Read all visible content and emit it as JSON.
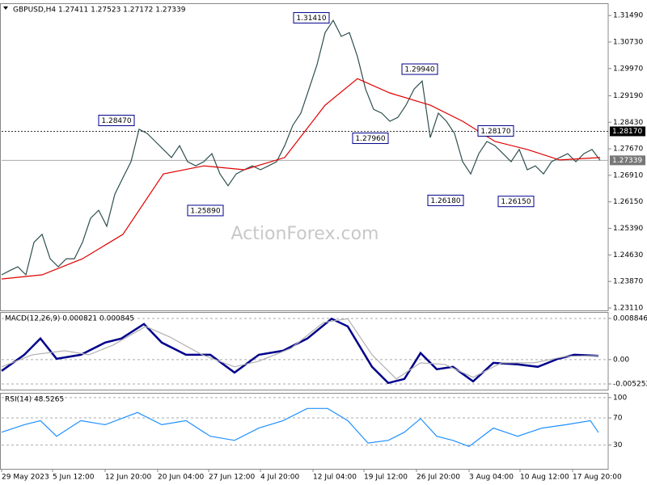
{
  "chart_data": [
    {
      "type": "line",
      "title": "GBPUSD,H4  1.27411 1.27523 1.27172 1.27339",
      "watermark": "ActionForex.com",
      "xlim": [
        0,
        75
      ],
      "ylim": [
        1.2304,
        1.3184
      ],
      "yticks": [
        {
          "value": 1.3149,
          "label": "1.31490"
        },
        {
          "value": 1.3073,
          "label": "1.30730"
        },
        {
          "value": 1.2997,
          "label": "1.29970"
        },
        {
          "value": 1.2919,
          "label": "1.29190"
        },
        {
          "value": 1.2843,
          "label": "1.28430"
        },
        {
          "value": 1.2767,
          "label": "1.27670"
        },
        {
          "value": 1.2691,
          "label": "1.26910"
        },
        {
          "value": 1.2615,
          "label": "1.26150"
        },
        {
          "value": 1.2539,
          "label": "1.25390"
        },
        {
          "value": 1.2463,
          "label": "1.24630"
        },
        {
          "value": 1.2387,
          "label": "1.23870"
        },
        {
          "value": 1.2311,
          "label": "1.23110"
        }
      ],
      "reference_lines": [
        {
          "value": 1.2817,
          "label": "1.28170",
          "style": "dashed"
        },
        {
          "value": 1.27339,
          "label": "1.27339",
          "style": "solid"
        }
      ],
      "annotations": [
        {
          "value": 1.3141,
          "label": "1.31410"
        },
        {
          "value": 1.2994,
          "label": "1.29940"
        },
        {
          "value": 1.2847,
          "label": "1.28470"
        },
        {
          "value": 1.2796,
          "label": "1.27960"
        },
        {
          "value": 1.2817,
          "label": "1.28170"
        },
        {
          "value": 1.2589,
          "label": "1.25890"
        },
        {
          "value": 1.2618,
          "label": "1.26180"
        },
        {
          "value": 1.2615,
          "label": "1.26150"
        }
      ],
      "series": [
        {
          "color": "#2f4f4f",
          "x": [
            0,
            1,
            2,
            3,
            4,
            5,
            6,
            7,
            8,
            9,
            10,
            11,
            12,
            13,
            14,
            15,
            16,
            17,
            18,
            19,
            20,
            21,
            22,
            23,
            24,
            25,
            26,
            27,
            28,
            29,
            30,
            31,
            32,
            33,
            34,
            35,
            36,
            37,
            38,
            39,
            40,
            41,
            42,
            43,
            44,
            45,
            46,
            47,
            48,
            49,
            50,
            51,
            52,
            53,
            54,
            55,
            56,
            57,
            58,
            59,
            60,
            61,
            62,
            63,
            64,
            65,
            66,
            67,
            68,
            69,
            70,
            71,
            72,
            73,
            74
          ],
          "values": [
            1.2406,
            1.2418,
            1.2429,
            1.2406,
            1.2499,
            1.2522,
            1.2452,
            1.2429,
            1.2452,
            1.2452,
            1.2499,
            1.2568,
            1.2591,
            1.2545,
            1.2637,
            1.2684,
            1.273,
            1.2823,
            1.2811,
            1.2788,
            1.2765,
            1.2742,
            1.2776,
            1.273,
            1.2718,
            1.273,
            1.2753,
            1.2695,
            1.2661,
            1.2695,
            1.2707,
            1.2718,
            1.2707,
            1.2718,
            1.273,
            1.2776,
            1.2834,
            1.2869,
            1.2938,
            1.3008,
            1.31,
            1.3135,
            1.3089,
            1.31,
            1.3031,
            1.2938,
            1.288,
            1.2869,
            1.2846,
            1.2857,
            1.2892,
            1.2938,
            1.2961,
            1.2799,
            1.2869,
            1.2846,
            1.2811,
            1.273,
            1.2695,
            1.2753,
            1.2788,
            1.2776,
            1.2753,
            1.273,
            1.2765,
            1.2707,
            1.2718,
            1.2695,
            1.273,
            1.2742,
            1.2753,
            1.273,
            1.2753,
            1.2765,
            1.2734
          ]
        },
        {
          "color": "#e00000",
          "x": [
            0,
            5,
            10,
            15,
            20,
            25,
            30,
            35,
            40,
            44,
            48,
            53,
            57,
            61,
            65,
            69,
            74
          ],
          "values": [
            1.2394,
            1.2406,
            1.2452,
            1.2522,
            1.2695,
            1.2718,
            1.2707,
            1.2742,
            1.2892,
            1.2968,
            1.2927,
            1.2892,
            1.2846,
            1.2788,
            1.2765,
            1.2735,
            1.2742
          ]
        }
      ]
    },
    {
      "type": "line",
      "title": "MACD(12,26,9) 0.000821 0.000845",
      "xlim": [
        0,
        75
      ],
      "ylim": [
        -0.00647,
        0.01024
      ],
      "yticks": [
        0.008846,
        {
          "value": 0,
          "label": "0.00"
        },
        -0.005252
      ],
      "series": [
        {
          "color": "#00008b",
          "x": [
            0,
            2.8,
            4.8,
            6.8,
            9.8,
            12.8,
            14.8,
            17.6,
            19.8,
            22.8,
            25.8,
            28.8,
            31.8,
            34.8,
            37.8,
            40.8,
            42.8,
            45.8,
            47.8,
            49.8,
            51.8,
            53.8,
            55.8,
            58.3,
            60.8,
            63.8,
            66.3,
            68.8,
            70.8,
            73.8
          ],
          "values": [
            -0.00244,
            0.00104,
            0.00453,
            0.00017,
            0.00104,
            0.00366,
            0.00453,
            0.00766,
            0.00366,
            0.00104,
            0.00104,
            -0.00279,
            0.00104,
            0.00191,
            0.00453,
            0.0088,
            0.00714,
            -0.00157,
            -0.00505,
            -0.00418,
            0.00139,
            -0.00209,
            -0.00157,
            -0.0047,
            -0.0007,
            -0.00104,
            -0.00157,
            0.00017,
            0.00104,
            0.00082
          ]
        },
        {
          "color": "#b0b0b0",
          "x": [
            0,
            3.8,
            7.8,
            10.8,
            13.8,
            17.8,
            20.8,
            24.8,
            28.8,
            31.8,
            35.8,
            39.8,
            42.8,
            45.8,
            48.8,
            51.8,
            54.8,
            58.3,
            61.8,
            65.8,
            69.8,
            73.8
          ],
          "values": [
            -0.00157,
            0.00104,
            0.00191,
            0.00104,
            0.00313,
            0.00714,
            0.00487,
            0.00104,
            -0.00157,
            -0.00035,
            0.00244,
            0.008,
            0.0088,
            0.00104,
            -0.00418,
            -0.0007,
            -0.00104,
            -0.00383,
            -0.0007,
            -0.0007,
            0.0007,
            0.00085
          ]
        }
      ]
    },
    {
      "type": "line",
      "title": "RSI(14) 48.5265",
      "xlim": [
        0,
        75
      ],
      "ylim": [
        -5,
        107
      ],
      "yticks": [
        100,
        70,
        30
      ],
      "xticks": [
        {
          "value": 0,
          "label": "29 May 2023"
        },
        {
          "value": 6.3,
          "label": "5 Jun 12:00"
        },
        {
          "value": 12.8,
          "label": "12 Jun 20:00"
        },
        {
          "value": 19.3,
          "label": "20 Jun 04:00"
        },
        {
          "value": 25.6,
          "label": "27 Jun 12:00"
        },
        {
          "value": 32,
          "label": "4 Jul 20:00"
        },
        {
          "value": 38.5,
          "label": "12 Jul 04:00"
        },
        {
          "value": 44.8,
          "label": "19 Jul 12:00"
        },
        {
          "value": 51.3,
          "label": "26 Jul 20:00"
        },
        {
          "value": 57.8,
          "label": "3 Aug 04:00"
        },
        {
          "value": 64.1,
          "label": "10 Aug 12:00"
        },
        {
          "value": 70.6,
          "label": "17 Aug 20:00"
        }
      ],
      "series": [
        {
          "color": "#1e90ff",
          "x": [
            0,
            2.8,
            4.8,
            6.8,
            9.8,
            12.8,
            16.8,
            19.8,
            22.8,
            25.8,
            28.8,
            31.8,
            34.8,
            37.8,
            40.3,
            42.8,
            45.3,
            47.8,
            49.8,
            51.8,
            53.8,
            55.8,
            57.8,
            60.8,
            63.8,
            66.8,
            69.8,
            72.8,
            73.8
          ],
          "values": [
            49,
            60,
            66,
            43,
            66,
            60,
            78,
            60,
            66,
            43,
            37,
            55,
            66,
            84,
            84,
            66,
            33,
            37,
            49,
            69,
            43,
            37,
            28,
            55,
            43,
            55,
            60,
            66,
            48.5
          ]
        }
      ]
    }
  ]
}
